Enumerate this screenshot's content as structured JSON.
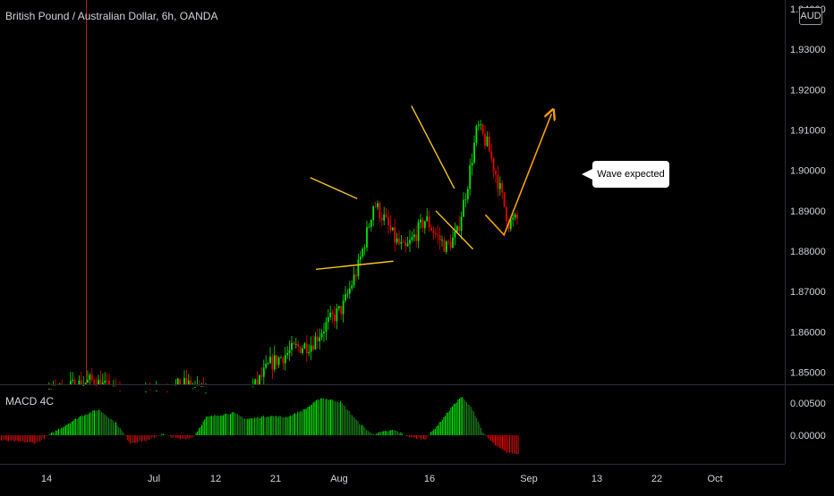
{
  "chart_title": "British Pound / Australian Dollar, 6h, OANDA",
  "currency_badge": "AUD",
  "indicator_label": "MACD 4C",
  "annotation_text": "Wave expected",
  "colors": {
    "up": "#26a69a",
    "down": "#ef5350",
    "bright_up": "#00e600",
    "bright_down": "#e60000",
    "drawing": "#f5c518",
    "arrow": "#f59e0b"
  },
  "chart_data": [
    {
      "type": "candlestick",
      "title": "British Pound / Australian Dollar, 6h, OANDA",
      "ylim": [
        1.847,
        1.94
      ],
      "y_ticks": [
        "1.85000",
        "1.86000",
        "1.87000",
        "1.88000",
        "1.89000",
        "1.90000",
        "1.91000",
        "1.92000",
        "1.93000",
        "1.94000"
      ],
      "x_ticks": [
        "14",
        "Jul",
        "12",
        "21",
        "Aug",
        "16",
        "Sep",
        "13",
        "22",
        "Oct"
      ],
      "trend_path": [
        [
          0.0,
          1.835
        ],
        [
          0.1,
          1.845
        ],
        [
          0.18,
          1.848
        ],
        [
          0.22,
          1.845
        ],
        [
          0.26,
          1.842
        ],
        [
          0.3,
          1.845
        ],
        [
          0.36,
          1.847
        ],
        [
          0.42,
          1.842
        ],
        [
          0.47,
          1.843
        ],
        [
          0.5,
          1.848
        ],
        [
          0.52,
          1.852
        ],
        [
          0.57,
          1.856
        ],
        [
          0.6,
          1.857
        ],
        [
          0.63,
          1.862
        ],
        [
          0.66,
          1.866
        ],
        [
          0.69,
          1.876
        ],
        [
          0.71,
          1.886
        ],
        [
          0.72,
          1.892
        ],
        [
          0.74,
          1.888
        ],
        [
          0.76,
          1.883
        ],
        [
          0.78,
          1.88
        ],
        [
          0.8,
          1.884
        ],
        [
          0.82,
          1.888
        ],
        [
          0.84,
          1.884
        ],
        [
          0.86,
          1.881
        ],
        [
          0.88,
          1.884
        ],
        [
          0.9,
          1.896
        ],
        [
          0.92,
          1.911
        ],
        [
          0.94,
          1.906
        ],
        [
          0.96,
          1.897
        ],
        [
          0.98,
          1.887
        ],
        [
          1.0,
          1.888
        ]
      ],
      "drawings": [
        {
          "kind": "line",
          "from": [
            "Jul 27",
            1.8982
          ],
          "to": [
            "Aug 04",
            1.893
          ]
        },
        {
          "kind": "line",
          "from": [
            "Jul 28",
            1.8755
          ],
          "to": [
            "Aug 10",
            1.8775
          ]
        },
        {
          "kind": "line",
          "from": [
            "Aug 13",
            1.916
          ],
          "to": [
            "Aug 20",
            1.8955
          ]
        },
        {
          "kind": "line",
          "from": [
            "Aug 17",
            1.89
          ],
          "to": [
            "Aug 23",
            1.8805
          ]
        },
        {
          "kind": "polyline",
          "points": [
            [
              "Aug 25",
              1.889
            ],
            [
              "Aug 28",
              1.884
            ],
            [
              "Sep 05",
              1.914
            ]
          ],
          "arrow": true
        }
      ]
    },
    {
      "type": "bar",
      "title": "MACD 4C",
      "y_ticks": [
        "0.00500",
        "0.00000"
      ]
    }
  ]
}
